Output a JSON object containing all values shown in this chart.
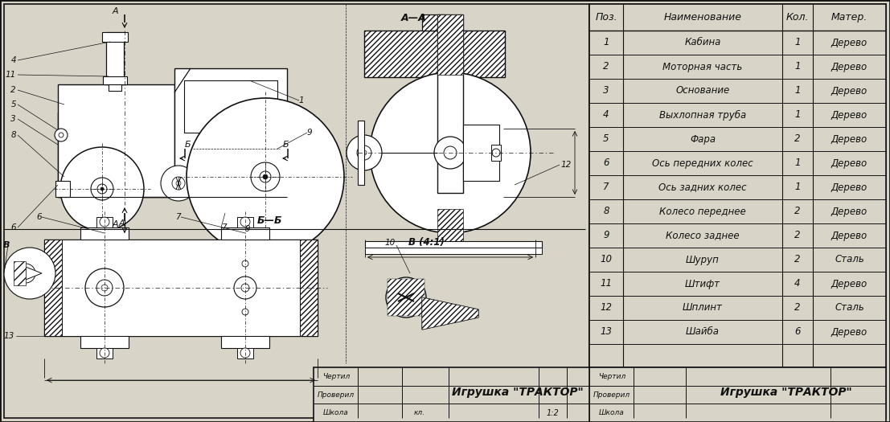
{
  "bg_color": "#d8d4c8",
  "line_color": "#111111",
  "text_color": "#111111",
  "white": "#ffffff",
  "table_headers": [
    "Поз.",
    "Наименование",
    "Кол.",
    "Матер."
  ],
  "table_rows": [
    [
      "1",
      "Кабина",
      "1",
      "Дерево"
    ],
    [
      "2",
      "Моторная часть",
      "1",
      "Дерево"
    ],
    [
      "3",
      "Основание",
      "1",
      "Дерево"
    ],
    [
      "4",
      "Выхлопная труба",
      "1",
      "Дерево"
    ],
    [
      "5",
      "Фара",
      "2",
      "Дерево"
    ],
    [
      "6",
      "Ось передних колес",
      "1",
      "Дерево"
    ],
    [
      "7",
      "Ось задних колес",
      "1",
      "Дерево"
    ],
    [
      "8",
      "Колесо переднее",
      "2",
      "Дерево"
    ],
    [
      "9",
      "Колесо заднее",
      "2",
      "Дерево"
    ],
    [
      "10",
      "Шуруп",
      "2",
      "Сталь"
    ],
    [
      "11",
      "Штифт",
      "4",
      "Дерево"
    ],
    [
      "12",
      "Шплинт",
      "2",
      "Сталь"
    ],
    [
      "13",
      "Шайба",
      "6",
      "Дерево"
    ]
  ],
  "title_text": "Игрушка «ТРАКТОР»",
  "title_rows": [
    "Чертил",
    "Проверил",
    "Школа"
  ],
  "scale_text": "1:2",
  "klass_text": "кл."
}
